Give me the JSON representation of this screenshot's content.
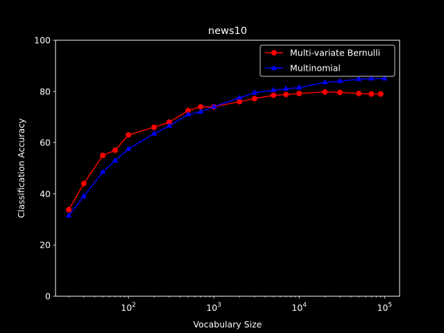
{
  "chart_data": {
    "type": "line",
    "title": "news10",
    "xlabel": "Vocabulary Size",
    "ylabel": "Classification Accuracy",
    "xscale": "log",
    "xlim": [
      14,
      150000
    ],
    "ylim": [
      0,
      100
    ],
    "yticks": [
      0,
      20,
      40,
      60,
      80,
      100
    ],
    "xticks": [
      {
        "value": 100,
        "base": "10",
        "exp": "2"
      },
      {
        "value": 1000,
        "base": "10",
        "exp": "3"
      },
      {
        "value": 10000,
        "base": "10",
        "exp": "4"
      },
      {
        "value": 100000,
        "base": "10",
        "exp": "5"
      }
    ],
    "background": "#000000",
    "foreground": "#ffffff",
    "grid": false,
    "legend_position": "top-right",
    "series": [
      {
        "name": "Multi-variate Bernulli",
        "color": "#ff0000",
        "marker": "circle",
        "x": [
          20,
          30,
          50,
          70,
          100,
          200,
          300,
          500,
          700,
          1000,
          2000,
          3000,
          5000,
          7000,
          10000,
          20000,
          30000,
          50000,
          70000,
          90000
        ],
        "y": [
          33.8,
          44.0,
          55.0,
          57.0,
          63.0,
          66.0,
          68.0,
          72.5,
          74.0,
          74.0,
          76.0,
          77.2,
          78.5,
          78.8,
          79.2,
          79.8,
          79.6,
          79.2,
          79.0,
          79.0
        ]
      },
      {
        "name": "Multinomial",
        "color": "#0000ff",
        "marker": "triangle",
        "x": [
          20,
          30,
          50,
          70,
          100,
          200,
          300,
          500,
          700,
          1000,
          2000,
          3000,
          5000,
          7000,
          10000,
          20000,
          30000,
          50000,
          70000,
          100000
        ],
        "y": [
          31.5,
          39.0,
          48.5,
          53.0,
          57.5,
          63.5,
          66.5,
          71.0,
          72.0,
          74.0,
          77.5,
          79.5,
          80.5,
          81.0,
          81.5,
          83.5,
          84.0,
          84.8,
          85.0,
          85.0
        ]
      }
    ]
  }
}
